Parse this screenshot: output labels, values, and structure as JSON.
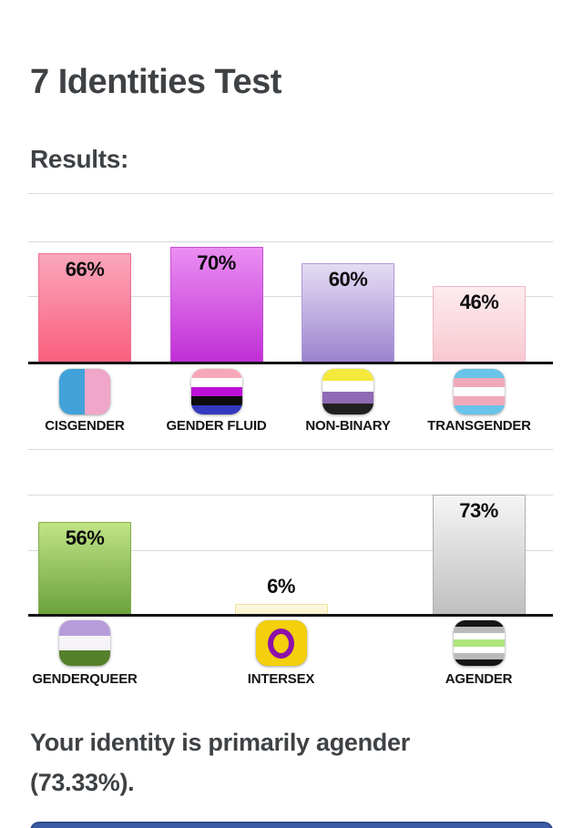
{
  "page": {
    "title": "7 Identities Test",
    "results_heading": "Results:",
    "summary_line1": "Your identity is primarily agender",
    "summary_line2": "(73.33%)."
  },
  "chart_data": [
    {
      "type": "bar",
      "title": "",
      "categories": [
        "CISGENDER",
        "GENDER FLUID",
        "NON-BINARY",
        "TRANSGENDER"
      ],
      "values": [
        66,
        70,
        60,
        46
      ],
      "value_labels": [
        "66%",
        "70%",
        "60%",
        "46%"
      ],
      "ylim": [
        0,
        100
      ],
      "grid": true,
      "legend": "none",
      "bar_styles": [
        {
          "top": "#f9a6bb",
          "bottom": "#fb5f7d",
          "border": "#ee6f94"
        },
        {
          "top": "#eb8ef2",
          "bottom": "#c02fd6",
          "border": "#c44ed4"
        },
        {
          "top": "#e4dcf4",
          "bottom": "#9c83cf",
          "border": "#af97da"
        },
        {
          "top": "#fdecef",
          "bottom": "#f8c8d1",
          "border": "#f2b6c3"
        }
      ],
      "icons": [
        "cisgender-flag-icon",
        "genderfluid-flag-icon",
        "nonbinary-flag-icon",
        "transgender-flag-icon"
      ]
    },
    {
      "type": "bar",
      "title": "",
      "categories": [
        "GENDERQUEER",
        "INTERSEX",
        "AGENDER"
      ],
      "values": [
        56,
        6,
        73
      ],
      "value_labels": [
        "56%",
        "6%",
        "73%"
      ],
      "ylim": [
        0,
        100
      ],
      "grid": true,
      "legend": "none",
      "bar_styles": [
        {
          "top": "#c0e486",
          "bottom": "#6ca23c",
          "border": "#83ab4e"
        },
        {
          "top": "#fdf9e3",
          "bottom": "#fbf3cd",
          "border": "#eedf9a"
        },
        {
          "top": "#f5f5f5",
          "bottom": "#bfbfbf",
          "border": "#aeaeae"
        }
      ],
      "icons": [
        "genderqueer-flag-icon",
        "intersex-flag-icon",
        "agender-flag-icon"
      ]
    }
  ],
  "icon_defs": {
    "cisgender-flag-icon": {
      "kind": "vsplit",
      "colors": [
        "#41a2da",
        "#efa6c9"
      ]
    },
    "genderfluid-flag-icon": {
      "kind": "hstripes",
      "colors": [
        "#f7a8b8",
        "#ffffff",
        "#bb0fd4",
        "#0d0d0d",
        "#3438bf"
      ]
    },
    "nonbinary-flag-icon": {
      "kind": "hstripes",
      "colors": [
        "#f4e93c",
        "#ffffff",
        "#8f6ab5",
        "#202020"
      ]
    },
    "transgender-flag-icon": {
      "kind": "hstripes",
      "colors": [
        "#69c4e9",
        "#f0a9ba",
        "#ffffff",
        "#f0a9ba",
        "#69c4e9"
      ]
    },
    "genderqueer-flag-icon": {
      "kind": "hstripes",
      "colors": [
        "#b79cdc",
        "#f6f4f8",
        "#55802b"
      ]
    },
    "intersex-flag-icon": {
      "kind": "ring",
      "bg": "#f3cf0c",
      "ring": "#8c10a9"
    },
    "agender-flag-icon": {
      "kind": "hstripes",
      "colors": [
        "#161616",
        "#bababa",
        "#ffffff",
        "#ace67c",
        "#ffffff",
        "#bababa",
        "#161616"
      ]
    }
  },
  "colors": {
    "heading_text": "#3f4245",
    "label_text": "#141414",
    "value_text": "#0d0d0d",
    "gridline": "#d9d9d9",
    "axis": "#141414",
    "bottom_button": "#3c5ba6",
    "bottom_button_border": "#2b4a8b"
  }
}
